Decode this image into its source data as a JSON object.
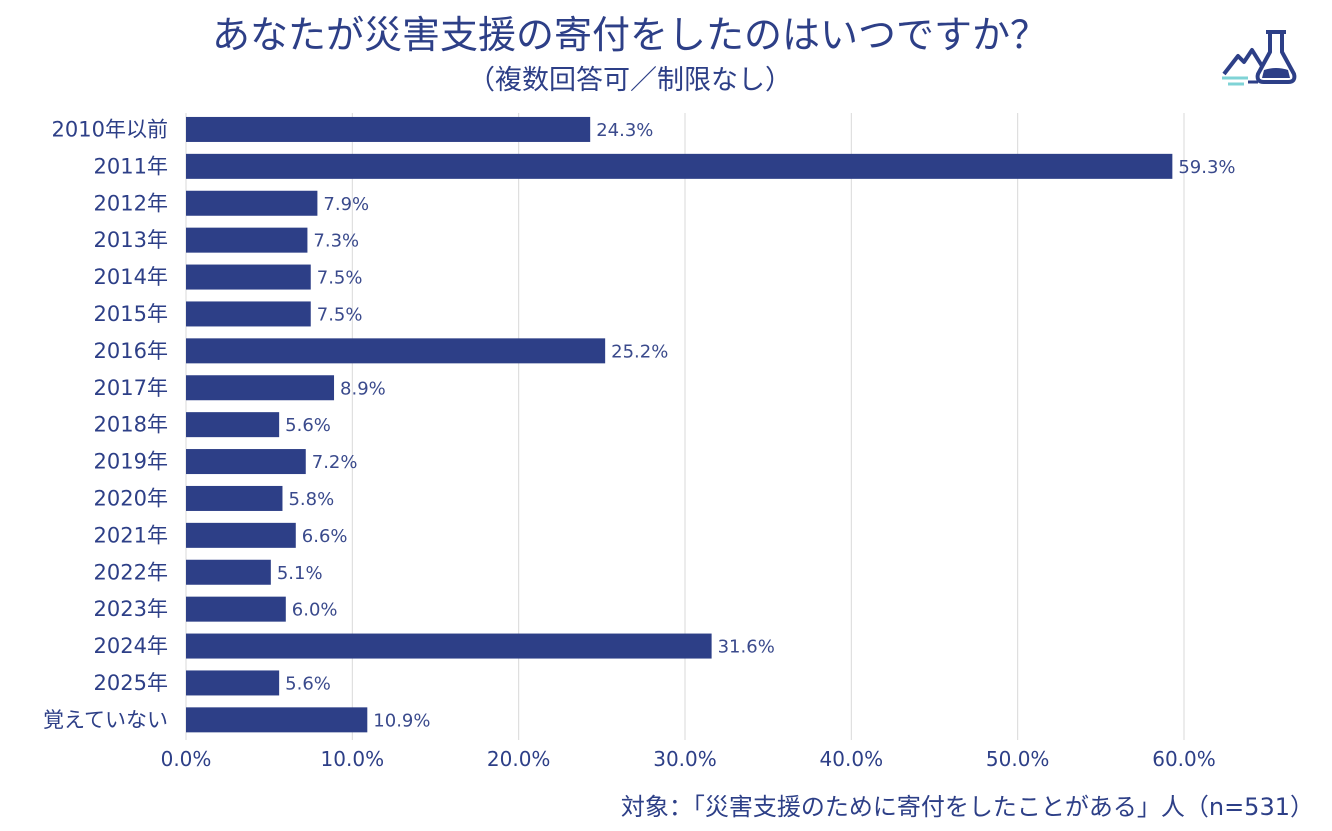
{
  "title": "あなたが災害支援の寄付をしたのはいつですか？",
  "subtitle": "（複数回答可／制限なし）",
  "footer": "対象：「災害支援のために寄付をしたことがある」人（n=531）",
  "logo": {
    "icon": "mountain-flask-icon"
  },
  "colors": {
    "bar": "#2d3f87",
    "text": "#2d3f87",
    "grid": "#d9d9d9",
    "logo_accent": "#7fd3d6"
  },
  "chart_data": {
    "type": "bar",
    "orientation": "horizontal",
    "title": "あなたが災害支援の寄付をしたのはいつですか？",
    "subtitle": "（複数回答可／制限なし）",
    "categories": [
      "2010年以前",
      "2011年",
      "2012年",
      "2013年",
      "2014年",
      "2015年",
      "2016年",
      "2017年",
      "2018年",
      "2019年",
      "2020年",
      "2021年",
      "2022年",
      "2023年",
      "2024年",
      "2025年",
      "覚えていない"
    ],
    "values": [
      24.3,
      59.3,
      7.9,
      7.3,
      7.5,
      7.5,
      25.2,
      8.9,
      5.6,
      7.2,
      5.8,
      6.6,
      5.1,
      6.0,
      31.6,
      5.6,
      10.9
    ],
    "value_labels": [
      "24.3%",
      "59.3%",
      "7.9%",
      "7.3%",
      "7.5%",
      "7.5%",
      "25.2%",
      "8.9%",
      "5.6%",
      "7.2%",
      "5.8%",
      "6.6%",
      "5.1%",
      "6.0%",
      "31.6%",
      "5.6%",
      "10.9%"
    ],
    "xlim": [
      0,
      60
    ],
    "xticks": [
      0,
      10,
      20,
      30,
      40,
      50,
      60
    ],
    "xtick_labels": [
      "0.0%",
      "10.0%",
      "20.0%",
      "30.0%",
      "40.0%",
      "50.0%",
      "60.0%"
    ],
    "xlabel": "",
    "ylabel": "",
    "grid": true,
    "legend": "none"
  }
}
